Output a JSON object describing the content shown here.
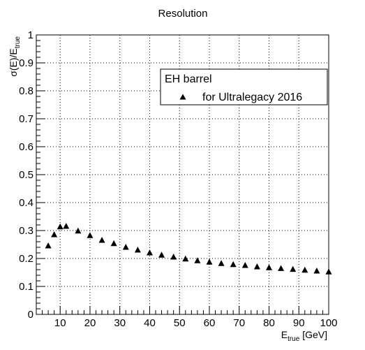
{
  "chart_data": {
    "type": "scatter",
    "title": "Resolution",
    "xlabel": {
      "main": "E",
      "sub": "true",
      "suffix": " [GeV]"
    },
    "ylabel": {
      "pre": "σ(E)/E",
      "sub": "true"
    },
    "xlim": [
      2,
      100
    ],
    "ylim": [
      0,
      1
    ],
    "xticks": [
      10,
      20,
      30,
      40,
      50,
      60,
      70,
      80,
      90,
      100
    ],
    "yticks": [
      0,
      0.1,
      0.2,
      0.3,
      0.4,
      0.5,
      0.6,
      0.7,
      0.8,
      0.9,
      1
    ],
    "grid": true,
    "marker": "triangle-up",
    "marker_color": "#000000",
    "legend": {
      "header": "EH barrel",
      "entries": [
        "for Ultralegacy 2016"
      ],
      "position": "top-right"
    },
    "series": [
      {
        "name": "for Ultralegacy 2016",
        "x": [
          6,
          8,
          10,
          12,
          16,
          20,
          24,
          28,
          32,
          36,
          40,
          44,
          48,
          52,
          56,
          60,
          64,
          68,
          72,
          76,
          80,
          84,
          88,
          92,
          96,
          100
        ],
        "y": [
          0.245,
          0.285,
          0.313,
          0.315,
          0.298,
          0.282,
          0.265,
          0.253,
          0.24,
          0.23,
          0.22,
          0.212,
          0.205,
          0.198,
          0.192,
          0.187,
          0.182,
          0.178,
          0.175,
          0.17,
          0.167,
          0.164,
          0.161,
          0.158,
          0.155,
          0.152
        ]
      }
    ]
  }
}
